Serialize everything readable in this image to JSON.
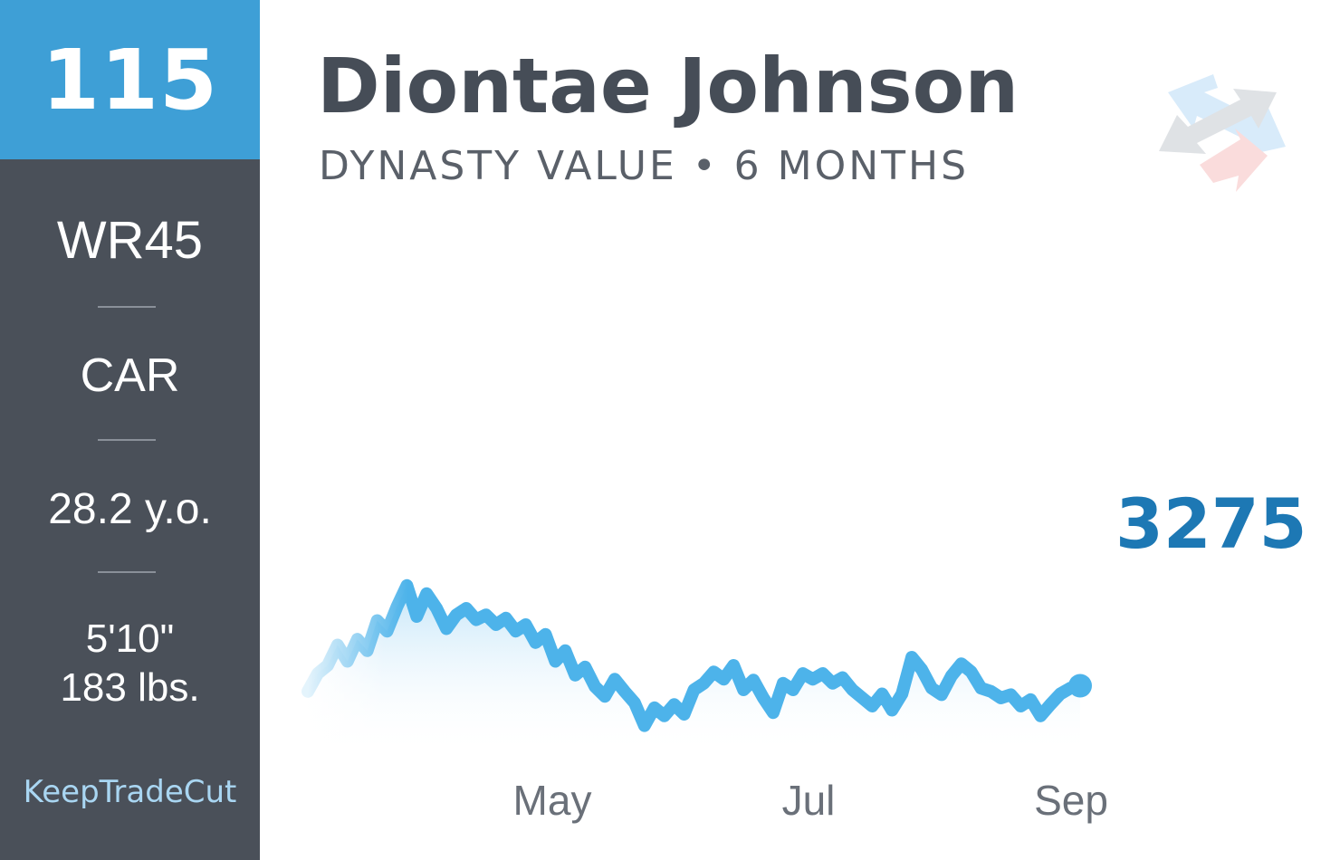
{
  "sidebar": {
    "rank": "115",
    "position_rank": "WR45",
    "team": "CAR",
    "age": "28.2 y.o.",
    "height": "5'10\"",
    "weight": "183 lbs.",
    "brand": "KeepTradeCut"
  },
  "header": {
    "player_name": "Diontae Johnson",
    "subtitle": "DYNASTY VALUE • 6 MONTHS"
  },
  "logo": {
    "icon": "keeptradecut-arrows-logo-icon"
  },
  "colors": {
    "sidebar_bg": "#4a5059",
    "rank_bg": "#3e9fd6",
    "line": "#4db3ea",
    "value_text": "#1d78b4",
    "name_text": "#464d57"
  },
  "chart_data": {
    "type": "line",
    "title": "",
    "xlabel": "",
    "ylabel": "",
    "x_tick_labels": [
      "May",
      "Jul",
      "Sep"
    ],
    "current_value_label": "3275",
    "grid": false,
    "legend": "none",
    "ylim": [
      2950,
      3950
    ],
    "series": [
      {
        "values": [
          3268,
          3290,
          3300,
          3325,
          3305,
          3332,
          3318,
          3355,
          3342,
          3372,
          3398,
          3360,
          3388,
          3370,
          3345,
          3362,
          3370,
          3356,
          3362,
          3350,
          3358,
          3342,
          3350,
          3328,
          3338,
          3305,
          3318,
          3288,
          3298,
          3274,
          3262,
          3283,
          3268,
          3254,
          3226,
          3248,
          3238,
          3252,
          3240,
          3270,
          3278,
          3292,
          3283,
          3300,
          3270,
          3282,
          3260,
          3242,
          3278,
          3270,
          3290,
          3283,
          3290,
          3278,
          3285,
          3270,
          3260,
          3250,
          3265,
          3245,
          3265,
          3310,
          3295,
          3272,
          3264,
          3287,
          3302,
          3292,
          3272,
          3268,
          3260,
          3264,
          3250,
          3258,
          3238,
          3252,
          3265,
          3272,
          3275
        ]
      }
    ]
  }
}
